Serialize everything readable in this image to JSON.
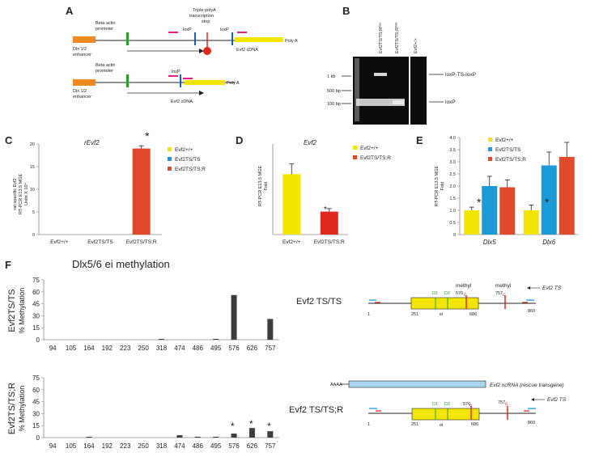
{
  "panels": {
    "A": "A",
    "B": "B",
    "C": "C",
    "D": "D",
    "E": "E",
    "F": "F"
  },
  "panel_a": {
    "beta_actin_1": "Beta actin",
    "promoter_1": "promoter",
    "beta_actin_2": "Beta actin",
    "promoter_2": "promoter",
    "dlx_1": "Dlx 1/2",
    "enhancer_1": "enhancer",
    "dlx_2": "Dlx 1/2",
    "enhancer_2": "enhancer",
    "loxp_a": "loxP",
    "loxp_b": "loxP",
    "loxp_c": "loxP",
    "triple_1": "Triple polyA",
    "triple_2": "transcription",
    "triple_3": "stop",
    "evf2_cdna_1": "Evf2 cDNA",
    "evf2_cdna_2": "Evf2 cDNA",
    "polya_1": "Poly A",
    "polya_2": "Poly A"
  },
  "panel_b": {
    "lanes": [
      "Evf2TS/TS;R⁰ᵃᵉ",
      "Evf2TS/TS;R⁰ᵈᵉ",
      "Evf2+/+"
    ],
    "ladder": [
      "1 kb",
      "500 bp",
      "100 bp"
    ],
    "bands": [
      "loxP-TS-loxP",
      "loxP"
    ]
  },
  "panel_c": {
    "title": "rEvf2",
    "ylabel_1": "rat-specific Evf2",
    "ylabel_2": "RT-PCR E13.5 MGE",
    "ylabel_3": "Units X 10⁴",
    "star": "*",
    "chart_data": {
      "type": "bar",
      "categories": [
        "Evf2+/+",
        "Evf2TS/TS",
        "Evf2TS/TS;R"
      ],
      "values": [
        0,
        0,
        19
      ],
      "errors": [
        0,
        0,
        0.6
      ],
      "ylim": [
        0,
        20
      ],
      "yticks": [
        "0",
        "5",
        "10",
        "15",
        "20"
      ],
      "colors": [
        "#f2e600",
        "#1a9ad6",
        "#e04a2c"
      ],
      "title": "rEvf2",
      "ylabel": "rat-specific Evf2 RT-PCR E13.5 MGE Units X 10⁴"
    },
    "legend": [
      {
        "label": "Evf2+/+",
        "color": "#f2e600"
      },
      {
        "label": "Evf2TS/TS",
        "color": "#1a9ad6"
      },
      {
        "label": "Evf2TS/TS;R",
        "color": "#e04a2c"
      }
    ]
  },
  "panel_d": {
    "title": "Evf2",
    "ylabel_1": "RT-PCR E13.5 MGE",
    "ylabel_2": "Fold",
    "star": "*",
    "chart_data": {
      "type": "bar",
      "categories": [
        "Evf2+/+",
        "Evf2TS/TS;R"
      ],
      "values": [
        1.0,
        0.38
      ],
      "errors": [
        0.17,
        0.05
      ],
      "ylim": [
        0,
        1.5
      ],
      "colors": [
        "#f2e600",
        "#e0281c"
      ],
      "title": "Evf2",
      "ylabel": "RT-PCR E13.5 MGE Fold"
    },
    "legend": [
      {
        "label": "Evf2+/+",
        "color": "#f2e600"
      },
      {
        "label": "Evf2TS/TS;R",
        "color": "#e04a2c"
      }
    ]
  },
  "panel_e": {
    "ylabel_1": "RT-PCR E13.5 MGE",
    "ylabel_2": "Fold",
    "star_1": "*",
    "star_2": "*",
    "chart_data": {
      "type": "bar",
      "categories": [
        "Dlx5",
        "Dlx6"
      ],
      "series": [
        {
          "name": "Evf2+/+",
          "values": [
            1.0,
            1.0
          ],
          "errors": [
            0.13,
            0.22
          ]
        },
        {
          "name": "Evf2TS/TS",
          "values": [
            2.0,
            2.85
          ],
          "errors": [
            0.4,
            0.55
          ]
        },
        {
          "name": "Evf2TS/TS;R",
          "values": [
            1.95,
            3.2
          ],
          "errors": [
            0.3,
            0.6
          ]
        }
      ],
      "ylim": [
        0,
        4.0
      ],
      "yticks": [
        "0",
        "0.5",
        "1.0",
        "1.5",
        "2.0",
        "2.5",
        "3.0",
        "3.5",
        "4.0"
      ],
      "colors": [
        "#f2e600",
        "#1a9ad6",
        "#e04a2c"
      ],
      "ylabel": "RT-PCR E13.5 MGE Fold"
    },
    "legend": [
      {
        "label": "Evf2+/+",
        "color": "#f2e600"
      },
      {
        "label": "Evf2TS/TS",
        "color": "#1a9ad6"
      },
      {
        "label": "Evf2TS/TS;R",
        "color": "#e04a2c"
      }
    ]
  },
  "panel_f": {
    "title": "Dlx5/6 ei methylation",
    "ylabel": "% Methylation",
    "row1_label": "Evf2TS/TS",
    "row2_label": "Evf2TS/TS;R",
    "chart_data": [
      {
        "type": "bar",
        "categories": [
          "94",
          "105",
          "164",
          "192",
          "223",
          "250",
          "318",
          "474",
          "486",
          "495",
          "576",
          "626",
          "757"
        ],
        "values": [
          0,
          0,
          0,
          0,
          0,
          0,
          1,
          0,
          0,
          1,
          56,
          0,
          26
        ],
        "ylim": [
          0,
          75
        ],
        "yticks": [
          "0",
          "15",
          "30",
          "45",
          "60",
          "75"
        ],
        "ylabel": "% Methylation"
      },
      {
        "type": "bar",
        "categories": [
          "94",
          "105",
          "164",
          "192",
          "223",
          "250",
          "318",
          "474",
          "486",
          "495",
          "576",
          "626",
          "757"
        ],
        "values": [
          0,
          0,
          1,
          0,
          0,
          0,
          0,
          3,
          1,
          1,
          5,
          12,
          8
        ],
        "ylim": [
          0,
          75
        ],
        "yticks": [
          "0",
          "15",
          "30",
          "45",
          "60",
          "75"
        ],
        "ylabel": "% Methylation"
      }
    ],
    "stars": [
      "*",
      "*",
      "*"
    ]
  },
  "diagram_f": {
    "label_1": "Evf2 TS/TS",
    "label_2": "Evf2 TS/TS;R",
    "methyl_1": "methyl",
    "methyl_2": "methyl",
    "evf2ts_1": "Evf2 TS",
    "evf2ts_2": "Evf2 TS",
    "pos_576": "576",
    "pos_757": "757",
    "c_1": "c",
    "c_2": "c",
    "c_3": "c",
    "c_4": "c",
    "d1_1": "D1",
    "d2_1": "D2",
    "d1_2": "D1",
    "d2_2": "D2",
    "ei_1": "ei",
    "ei_2": "ei",
    "p1_1": "1",
    "p251_1": "251",
    "p686_1": "686",
    "p860_1": "860",
    "p1_2": "1",
    "p251_2": "251",
    "p686_2": "686",
    "p860_2": "860",
    "aaaa": "AAAA",
    "ncrna": "Evf2 ncRNA (rescue transgene)"
  }
}
